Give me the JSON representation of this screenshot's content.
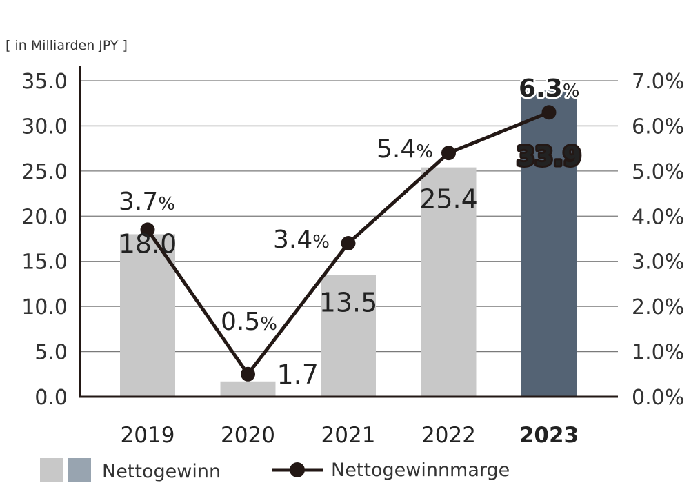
{
  "chart_data": {
    "type": "bar",
    "unit_label": "[ in Milliarden JPY ]",
    "categories": [
      "2019",
      "2020",
      "2021",
      "2022",
      "2023"
    ],
    "highlight_category": "2023",
    "series": [
      {
        "name": "Nettogewinn",
        "kind": "bar",
        "axis": "left",
        "values": [
          18.0,
          1.7,
          13.5,
          25.4,
          33.9
        ],
        "labels": [
          "18.0",
          "1.7",
          "13.5",
          "25.4",
          "33.9"
        ]
      },
      {
        "name": "Nettogewinnmarge",
        "kind": "line",
        "axis": "right",
        "values": [
          3.7,
          0.5,
          3.4,
          5.4,
          6.3
        ],
        "labels": [
          "3.7",
          "0.5",
          "3.4",
          "5.4",
          "6.3"
        ],
        "label_suffix": "%"
      }
    ],
    "y_left": {
      "lim": [
        0,
        35
      ],
      "ticks": [
        0,
        5,
        10,
        15,
        20,
        25,
        30,
        35
      ],
      "tick_labels": [
        "0.0",
        "5.0",
        "10.0",
        "15.0",
        "20.0",
        "25.0",
        "30.0",
        "35.0"
      ]
    },
    "y_right": {
      "lim": [
        0,
        7
      ],
      "ticks": [
        0,
        1,
        2,
        3,
        4,
        5,
        6,
        7
      ],
      "tick_labels": [
        "0.0%",
        "1.0%",
        "2.0%",
        "3.0%",
        "4.0%",
        "5.0%",
        "6.0%",
        "7.0%"
      ]
    },
    "grid": true,
    "legend_position": "bottom",
    "colors": {
      "bar": "#c8c8c8",
      "bar_highlight": "#546374",
      "bar_legend_highlight": "#98a4b0",
      "line": "#231815",
      "grid": "#7a7a7a",
      "axis": "#231815"
    }
  }
}
